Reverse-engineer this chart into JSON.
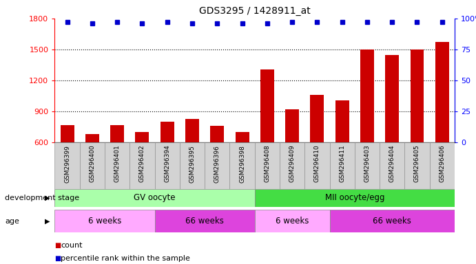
{
  "title": "GDS3295 / 1428911_at",
  "samples": [
    "GSM296399",
    "GSM296400",
    "GSM296401",
    "GSM296402",
    "GSM296394",
    "GSM296395",
    "GSM296396",
    "GSM296398",
    "GSM296408",
    "GSM296409",
    "GSM296410",
    "GSM296411",
    "GSM296403",
    "GSM296404",
    "GSM296405",
    "GSM296406"
  ],
  "counts": [
    770,
    680,
    770,
    700,
    800,
    830,
    760,
    700,
    1310,
    920,
    1060,
    1010,
    1500,
    1450,
    1500,
    1570
  ],
  "percentile_ranks": [
    97,
    96,
    97,
    96,
    97,
    96,
    96,
    96,
    96,
    97,
    97,
    97,
    97,
    97,
    97,
    97
  ],
  "bar_color": "#cc0000",
  "dot_color": "#0000cc",
  "ylim_left": [
    600,
    1800
  ],
  "ylim_right": [
    0,
    100
  ],
  "yticks_left": [
    600,
    900,
    1200,
    1500,
    1800
  ],
  "yticks_right": [
    0,
    25,
    50,
    75,
    100
  ],
  "development_stages": [
    {
      "label": "GV oocyte",
      "start": 0,
      "end": 8,
      "color": "#aaffaa"
    },
    {
      "label": "MII oocyte/egg",
      "start": 8,
      "end": 16,
      "color": "#44dd44"
    }
  ],
  "age_groups": [
    {
      "label": "6 weeks",
      "start": 0,
      "end": 4,
      "color": "#ffaaff"
    },
    {
      "label": "66 weeks",
      "start": 4,
      "end": 8,
      "color": "#dd44dd"
    },
    {
      "label": "6 weeks",
      "start": 8,
      "end": 11,
      "color": "#ffaaff"
    },
    {
      "label": "66 weeks",
      "start": 11,
      "end": 16,
      "color": "#dd44dd"
    }
  ],
  "xlabel_devstage": "development stage",
  "xlabel_age": "age",
  "legend_count_color": "#cc0000",
  "legend_dot_color": "#0000cc",
  "bar_width": 0.55,
  "tick_bg_color": "#d3d3d3"
}
